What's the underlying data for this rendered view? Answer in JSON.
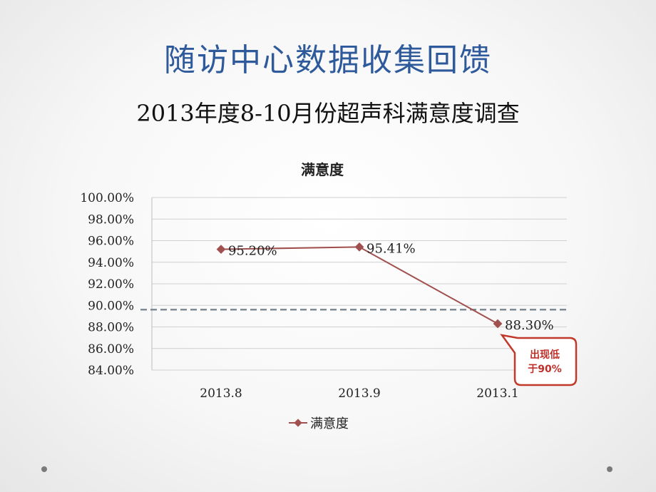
{
  "slide": {
    "title": "随访中心数据收集回馈",
    "subtitle": "2013年度8-10月份超声科满意度调查"
  },
  "chart_data": {
    "type": "line",
    "title": "满意度",
    "categories": [
      "2013.8",
      "2013.9",
      "2013.1"
    ],
    "series": [
      {
        "name": "满意度",
        "values": [
          95.2,
          95.41,
          88.3
        ],
        "color": "#a0504e"
      }
    ],
    "data_labels": [
      "95.20%",
      "95.41%",
      "88.30%"
    ],
    "y_ticks": [
      "100.00%",
      "98.00%",
      "96.00%",
      "94.00%",
      "92.00%",
      "90.00%",
      "88.00%",
      "86.00%",
      "84.00%"
    ],
    "ylim": [
      84,
      100
    ],
    "grid": true,
    "legend": "bottom",
    "threshold": {
      "value": 89.6,
      "style": "dashed",
      "color": "#7f8c95"
    },
    "annotation": {
      "text_line1": "出现低",
      "text_line2": "于90%",
      "color": "#c0302b"
    }
  }
}
